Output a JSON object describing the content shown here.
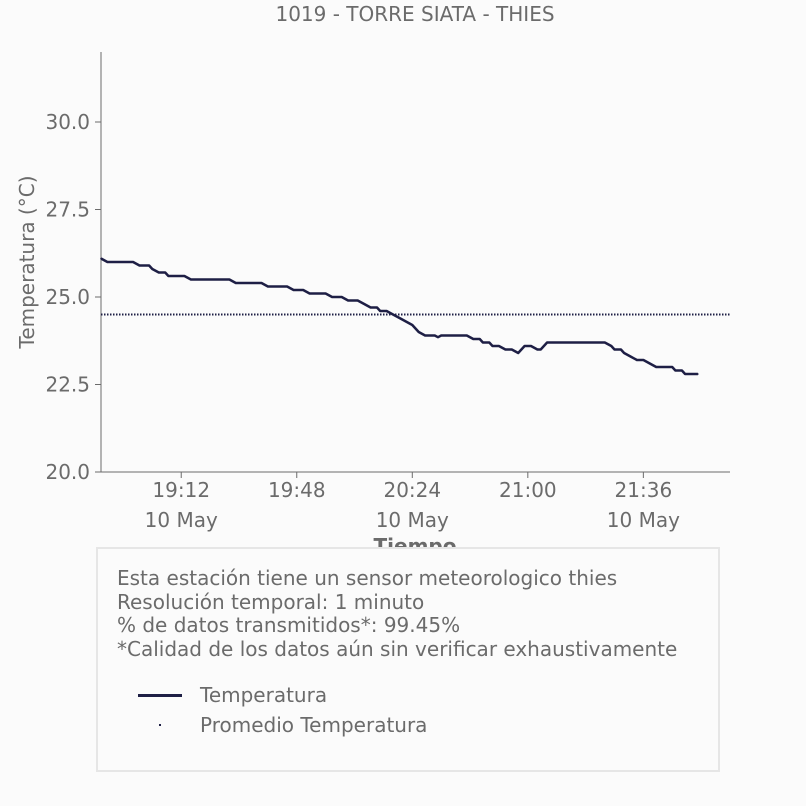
{
  "chart_data": {
    "type": "line",
    "title": "1019 - TORRE SIATA - THIES",
    "xlabel": "Tiempo",
    "ylabel": "Temperatura (°C)",
    "ylim": [
      20.0,
      32.0
    ],
    "xlim": [
      "18:47",
      "22:03"
    ],
    "y_ticks": [
      "20.0",
      "22.5",
      "25.0",
      "27.5",
      "30.0"
    ],
    "x_ticks": [
      {
        "time": "19:12",
        "date": "10 May"
      },
      {
        "time": "19:48",
        "date": ""
      },
      {
        "time": "20:24",
        "date": "10 May"
      },
      {
        "time": "21:00",
        "date": ""
      },
      {
        "time": "21:36",
        "date": "10 May"
      }
    ],
    "grid": false,
    "series": [
      {
        "name": "Temperatura",
        "color": "#1e1f45",
        "style": "solid",
        "points": [
          [
            "18:47",
            26.1
          ],
          [
            "18:49",
            26.0
          ],
          [
            "18:57",
            26.0
          ],
          [
            "18:59",
            25.9
          ],
          [
            "19:02",
            25.9
          ],
          [
            "19:03",
            25.8
          ],
          [
            "19:05",
            25.7
          ],
          [
            "19:07",
            25.7
          ],
          [
            "19:08",
            25.6
          ],
          [
            "19:13",
            25.6
          ],
          [
            "19:15",
            25.5
          ],
          [
            "19:27",
            25.5
          ],
          [
            "19:29",
            25.4
          ],
          [
            "19:37",
            25.4
          ],
          [
            "19:39",
            25.3
          ],
          [
            "19:45",
            25.3
          ],
          [
            "19:47",
            25.2
          ],
          [
            "19:50",
            25.2
          ],
          [
            "19:52",
            25.1
          ],
          [
            "19:57",
            25.1
          ],
          [
            "19:59",
            25.0
          ],
          [
            "20:02",
            25.0
          ],
          [
            "20:04",
            24.9
          ],
          [
            "20:07",
            24.9
          ],
          [
            "20:09",
            24.8
          ],
          [
            "20:11",
            24.7
          ],
          [
            "20:13",
            24.7
          ],
          [
            "20:14",
            24.6
          ],
          [
            "20:16",
            24.6
          ],
          [
            "20:18",
            24.5
          ],
          [
            "20:20",
            24.4
          ],
          [
            "20:22",
            24.3
          ],
          [
            "20:24",
            24.2
          ],
          [
            "20:26",
            24.0
          ],
          [
            "20:28",
            23.9
          ],
          [
            "20:31",
            23.9
          ],
          [
            "20:32",
            23.85
          ],
          [
            "20:33",
            23.9
          ],
          [
            "20:41",
            23.9
          ],
          [
            "20:43",
            23.8
          ],
          [
            "20:45",
            23.8
          ],
          [
            "20:46",
            23.7
          ],
          [
            "20:48",
            23.7
          ],
          [
            "20:49",
            23.6
          ],
          [
            "20:51",
            23.6
          ],
          [
            "20:53",
            23.5
          ],
          [
            "20:55",
            23.5
          ],
          [
            "20:57",
            23.4
          ],
          [
            "20:58",
            23.5
          ],
          [
            "20:59",
            23.6
          ],
          [
            "21:01",
            23.6
          ],
          [
            "21:03",
            23.5
          ],
          [
            "21:04",
            23.5
          ],
          [
            "21:06",
            23.7
          ],
          [
            "21:08",
            23.7
          ],
          [
            "21:24",
            23.7
          ],
          [
            "21:26",
            23.6
          ],
          [
            "21:27",
            23.5
          ],
          [
            "21:29",
            23.5
          ],
          [
            "21:30",
            23.4
          ],
          [
            "21:32",
            23.3
          ],
          [
            "21:34",
            23.2
          ],
          [
            "21:36",
            23.2
          ],
          [
            "21:38",
            23.1
          ],
          [
            "21:40",
            23.0
          ],
          [
            "21:45",
            23.0
          ],
          [
            "21:46",
            22.9
          ],
          [
            "21:48",
            22.9
          ],
          [
            "21:49",
            22.8
          ],
          [
            "21:53",
            22.8
          ]
        ]
      },
      {
        "name": "Promedio Temperatura",
        "color": "#1e1f45",
        "style": "dotted",
        "value": 24.5
      }
    ]
  },
  "info": {
    "line1": "Esta estación tiene un sensor meteorologico thies",
    "line2": "Resolución temporal: 1 minuto",
    "line3": "% de datos transmitidos*: 99.45%",
    "line4": "*Calidad de los datos aún sin verificar exhaustivamente"
  },
  "legend": {
    "item1": "Temperatura",
    "item2": "Promedio Temperatura"
  },
  "colors": {
    "series": "#1e1f45",
    "axis": "#6b6b6b",
    "text": "#6b6b6b",
    "box_border": "#e6e6e6"
  }
}
